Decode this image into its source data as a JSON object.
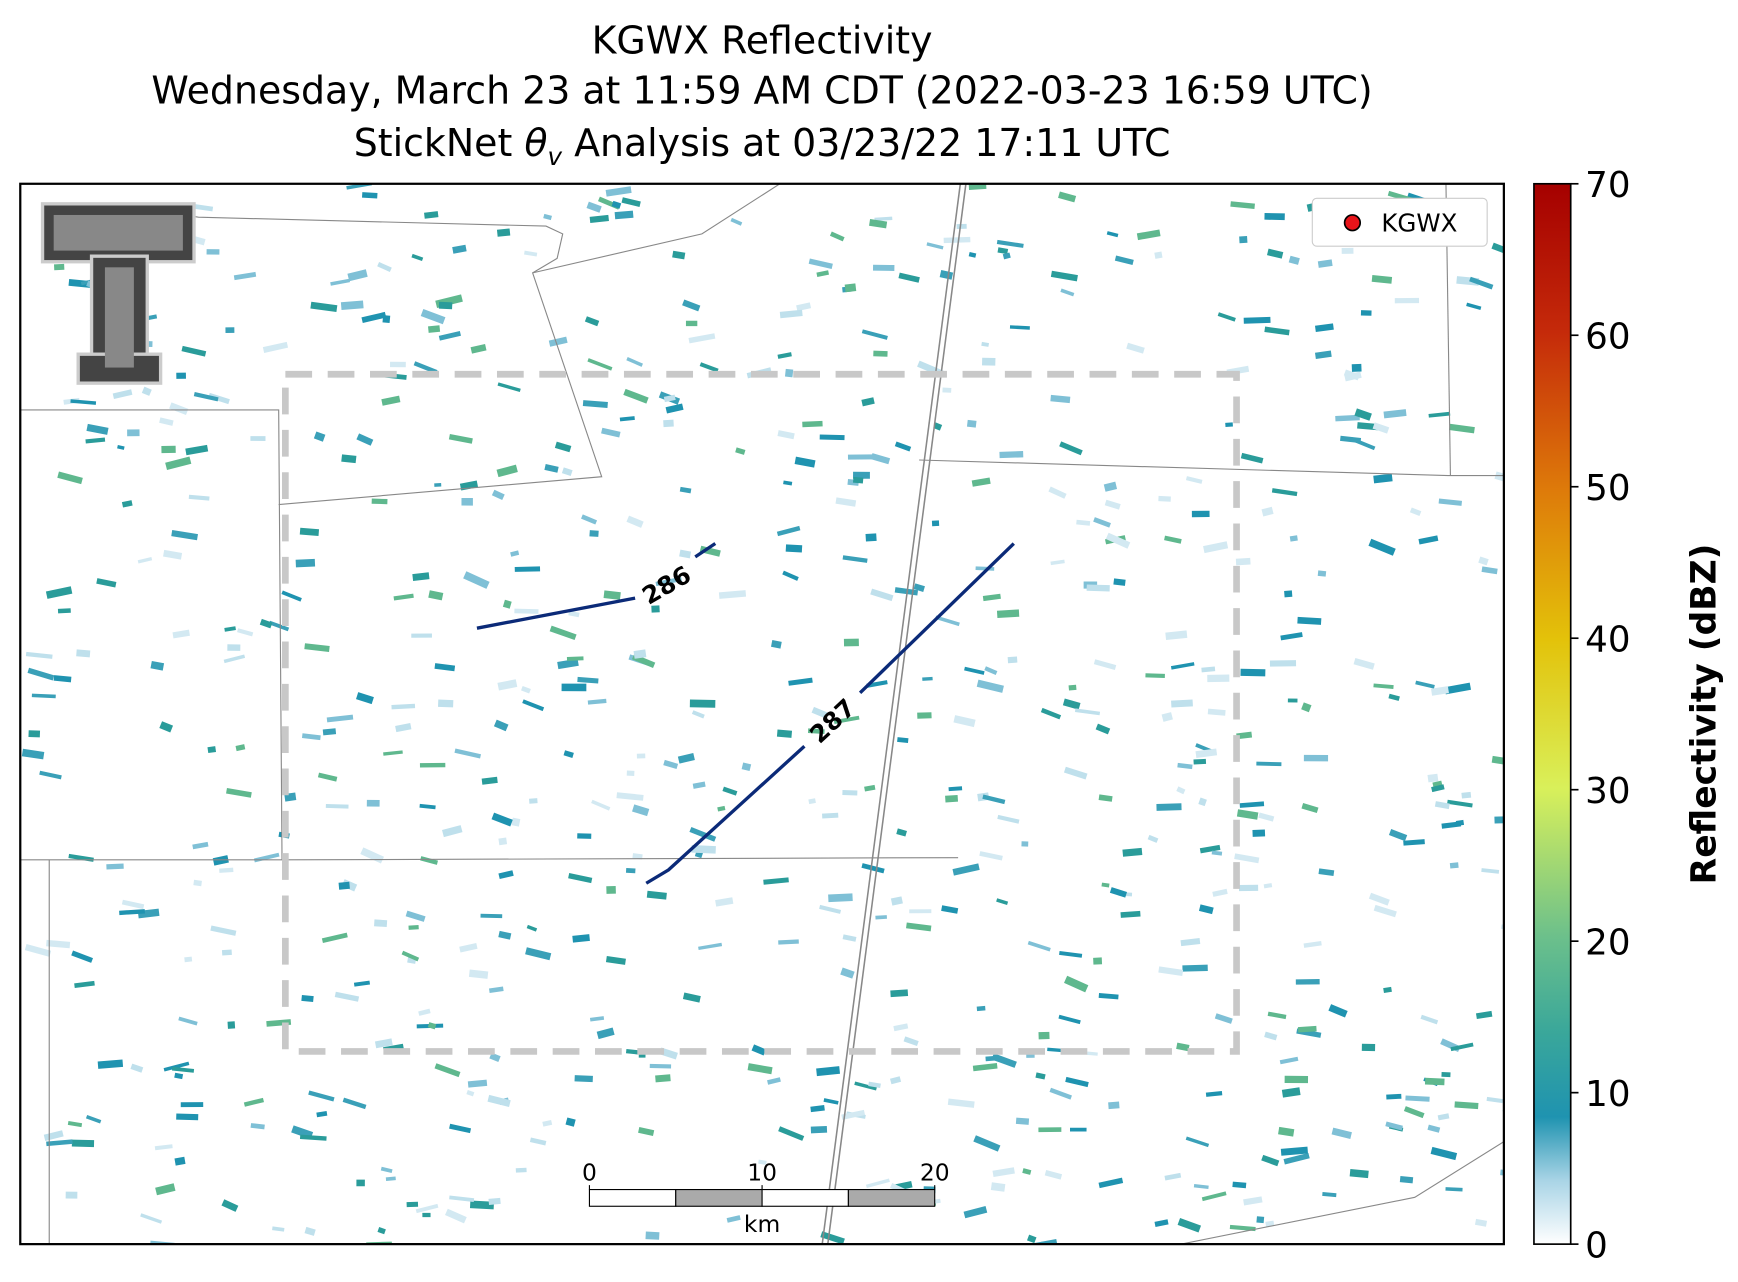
{
  "title": {
    "line1": "KGWX Reflectivity",
    "line2": "Wednesday, March 23 at 11:59 AM CDT (2022-03-23 16:59 UTC)",
    "line3_prefix": "StickNet",
    "line3_symbol": "θ",
    "line3_subscript": "v",
    "line3_suffix": "Analysis at 03/23/22 17:11 UTC"
  },
  "legend": {
    "label": "KGWX"
  },
  "contours": [
    {
      "label": "286"
    },
    {
      "label": "287"
    }
  ],
  "scale_bar": {
    "ticks": [
      0,
      10,
      20
    ],
    "unit": "km"
  },
  "colorbar": {
    "label": "Reflectivity (dBZ)",
    "lim": [
      0,
      70
    ],
    "ticks": [
      0,
      10,
      20,
      30,
      40,
      50,
      60,
      70
    ]
  }
}
